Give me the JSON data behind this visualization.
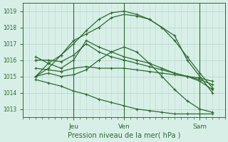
{
  "title": "",
  "xlabel": "Pression niveau de la mer( hPa )",
  "ylabel": "",
  "bg_color": "#d8efe8",
  "grid_color": "#b8d8cc",
  "line_color": "#2d6a2d",
  "ylim": [
    1012.5,
    1019.5
  ],
  "xlim": [
    -6,
    90
  ],
  "yticks": [
    1013,
    1014,
    1015,
    1016,
    1017,
    1018,
    1019
  ],
  "xtick_positions": [
    18,
    42,
    78
  ],
  "xtick_labels": [
    "Jeu",
    "Ven",
    "Sam"
  ],
  "vlines": [
    18,
    42,
    78
  ],
  "series": [
    {
      "x": [
        0,
        6,
        12,
        18,
        24,
        30,
        36,
        42,
        48,
        54,
        60,
        66,
        72,
        78,
        84
      ],
      "y": [
        1015.0,
        1015.5,
        1016.3,
        1017.0,
        1017.8,
        1018.5,
        1018.9,
        1019.0,
        1018.8,
        1018.5,
        1018.0,
        1017.2,
        1016.2,
        1015.2,
        1014.3
      ]
    },
    {
      "x": [
        0,
        6,
        12,
        18,
        24,
        30,
        36,
        42,
        48,
        54,
        60,
        66,
        72,
        78,
        84
      ],
      "y": [
        1015.0,
        1015.8,
        1016.3,
        1017.2,
        1017.6,
        1018.0,
        1018.6,
        1018.8,
        1018.7,
        1018.5,
        1018.0,
        1017.5,
        1016.0,
        1015.0,
        1014.0
      ]
    },
    {
      "x": [
        0,
        6,
        12,
        18,
        24,
        30,
        36,
        42,
        48,
        54,
        60,
        66,
        72,
        78,
        84
      ],
      "y": [
        1016.0,
        1016.0,
        1015.9,
        1016.3,
        1017.0,
        1016.5,
        1016.2,
        1016.0,
        1015.8,
        1015.6,
        1015.4,
        1015.2,
        1015.0,
        1014.8,
        1014.5
      ]
    },
    {
      "x": [
        0,
        6,
        12,
        18,
        24,
        30,
        36,
        42,
        48,
        54,
        60,
        66,
        72,
        78,
        84
      ],
      "y": [
        1015.5,
        1015.4,
        1015.3,
        1015.5,
        1015.6,
        1015.5,
        1015.5,
        1015.5,
        1015.4,
        1015.3,
        1015.2,
        1015.1,
        1015.0,
        1014.9,
        1014.7
      ]
    },
    {
      "x": [
        0,
        6,
        12,
        18,
        24,
        30,
        36,
        42,
        48,
        54,
        60,
        66,
        72,
        78,
        84
      ],
      "y": [
        1016.2,
        1015.8,
        1015.5,
        1016.0,
        1017.2,
        1016.8,
        1016.5,
        1016.2,
        1016.0,
        1015.8,
        1015.5,
        1015.2,
        1015.0,
        1014.7,
        1014.2
      ]
    },
    {
      "x": [
        0,
        6,
        12,
        18,
        24,
        30,
        36,
        42,
        48,
        54,
        60,
        66,
        72,
        78,
        84
      ],
      "y": [
        1015.0,
        1015.2,
        1015.0,
        1015.1,
        1015.4,
        1016.0,
        1016.5,
        1016.8,
        1016.5,
        1015.8,
        1015.0,
        1014.2,
        1013.5,
        1013.0,
        1012.8
      ]
    },
    {
      "x": [
        0,
        6,
        12,
        18,
        24,
        30,
        36,
        42,
        48,
        54,
        60,
        66,
        72,
        78,
        84
      ],
      "y": [
        1014.8,
        1014.6,
        1014.4,
        1014.1,
        1013.9,
        1013.6,
        1013.4,
        1013.2,
        1013.0,
        1012.9,
        1012.8,
        1012.7,
        1012.7,
        1012.7,
        1012.7
      ]
    }
  ]
}
